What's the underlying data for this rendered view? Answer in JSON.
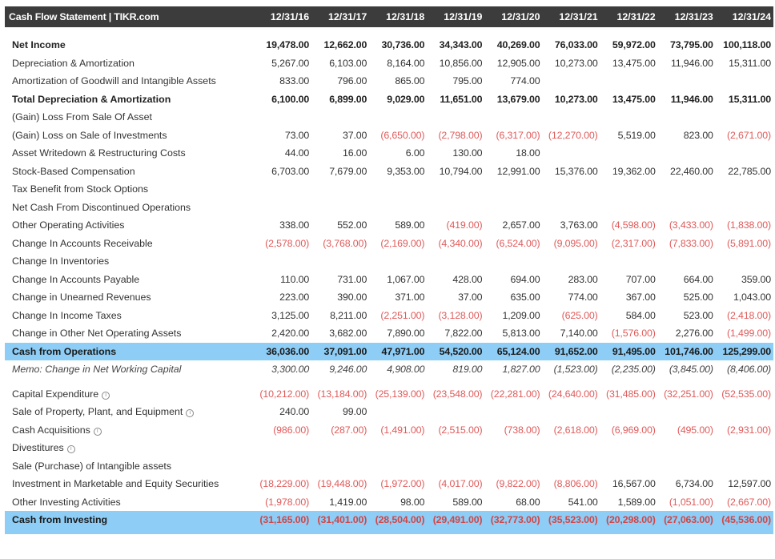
{
  "title": "Cash Flow Statement | TIKR.com",
  "columns": [
    "12/31/16",
    "12/31/17",
    "12/31/18",
    "12/31/19",
    "12/31/20",
    "12/31/21",
    "12/31/22",
    "12/31/23",
    "12/31/24"
  ],
  "sections": [
    {
      "rows": [
        {
          "label": "Net Income",
          "style": "bold",
          "values": [
            "19,478.00",
            "12,662.00",
            "30,736.00",
            "34,343.00",
            "40,269.00",
            "76,033.00",
            "59,972.00",
            "73,795.00",
            "100,118.00"
          ]
        },
        {
          "label": "Depreciation & Amortization",
          "values": [
            "5,267.00",
            "6,103.00",
            "8,164.00",
            "10,856.00",
            "12,905.00",
            "10,273.00",
            "13,475.00",
            "11,946.00",
            "15,311.00"
          ]
        },
        {
          "label": "Amortization of Goodwill and Intangible Assets",
          "values": [
            "833.00",
            "796.00",
            "865.00",
            "795.00",
            "774.00",
            "",
            "",
            "",
            ""
          ]
        },
        {
          "label": "Total Depreciation & Amortization",
          "style": "bold",
          "values": [
            "6,100.00",
            "6,899.00",
            "9,029.00",
            "11,651.00",
            "13,679.00",
            "10,273.00",
            "13,475.00",
            "11,946.00",
            "15,311.00"
          ]
        },
        {
          "label": "(Gain) Loss From Sale Of Asset",
          "values": [
            "",
            "",
            "",
            "",
            "",
            "",
            "",
            "",
            ""
          ]
        },
        {
          "label": "(Gain) Loss on Sale of Investments",
          "values": [
            "73.00",
            "37.00",
            "(6,650.00)",
            "(2,798.00)",
            "(6,317.00)",
            "(12,270.00)",
            "5,519.00",
            "823.00",
            "(2,671.00)"
          ]
        },
        {
          "label": "Asset Writedown & Restructuring Costs",
          "values": [
            "44.00",
            "16.00",
            "6.00",
            "130.00",
            "18.00",
            "",
            "",
            "",
            ""
          ]
        },
        {
          "label": "Stock-Based Compensation",
          "values": [
            "6,703.00",
            "7,679.00",
            "9,353.00",
            "10,794.00",
            "12,991.00",
            "15,376.00",
            "19,362.00",
            "22,460.00",
            "22,785.00"
          ]
        },
        {
          "label": "Tax Benefit from Stock Options",
          "values": [
            "",
            "",
            "",
            "",
            "",
            "",
            "",
            "",
            ""
          ]
        },
        {
          "label": "Net Cash From Discontinued Operations",
          "values": [
            "",
            "",
            "",
            "",
            "",
            "",
            "",
            "",
            ""
          ]
        },
        {
          "label": "Other Operating Activities",
          "values": [
            "338.00",
            "552.00",
            "589.00",
            "(419.00)",
            "2,657.00",
            "3,763.00",
            "(4,598.00)",
            "(3,433.00)",
            "(1,838.00)"
          ]
        },
        {
          "label": "Change In Accounts Receivable",
          "values": [
            "(2,578.00)",
            "(3,768.00)",
            "(2,169.00)",
            "(4,340.00)",
            "(6,524.00)",
            "(9,095.00)",
            "(2,317.00)",
            "(7,833.00)",
            "(5,891.00)"
          ]
        },
        {
          "label": "Change In Inventories",
          "values": [
            "",
            "",
            "",
            "",
            "",
            "",
            "",
            "",
            ""
          ]
        },
        {
          "label": "Change In Accounts Payable",
          "values": [
            "110.00",
            "731.00",
            "1,067.00",
            "428.00",
            "694.00",
            "283.00",
            "707.00",
            "664.00",
            "359.00"
          ]
        },
        {
          "label": "Change in Unearned Revenues",
          "values": [
            "223.00",
            "390.00",
            "371.00",
            "37.00",
            "635.00",
            "774.00",
            "367.00",
            "525.00",
            "1,043.00"
          ]
        },
        {
          "label": "Change In Income Taxes",
          "values": [
            "3,125.00",
            "8,211.00",
            "(2,251.00)",
            "(3,128.00)",
            "1,209.00",
            "(625.00)",
            "584.00",
            "523.00",
            "(2,418.00)"
          ]
        },
        {
          "label": "Change in Other Net Operating Assets",
          "values": [
            "2,420.00",
            "3,682.00",
            "7,890.00",
            "7,822.00",
            "5,813.00",
            "7,140.00",
            "(1,576.00)",
            "2,276.00",
            "(1,499.00)"
          ]
        },
        {
          "label": "Cash from Operations",
          "style": "hl",
          "values": [
            "36,036.00",
            "37,091.00",
            "47,971.00",
            "54,520.00",
            "65,124.00",
            "91,652.00",
            "91,495.00",
            "101,746.00",
            "125,299.00"
          ]
        },
        {
          "label": "Memo: Change in Net Working Capital",
          "style": "memo",
          "values": [
            "3,300.00",
            "9,246.00",
            "4,908.00",
            "819.00",
            "1,827.00",
            "(1,523.00)",
            "(2,235.00)",
            "(3,845.00)",
            "(8,406.00)"
          ]
        }
      ]
    },
    {
      "rows": [
        {
          "label": "Capital Expenditure",
          "info": true,
          "values": [
            "(10,212.00)",
            "(13,184.00)",
            "(25,139.00)",
            "(23,548.00)",
            "(22,281.00)",
            "(24,640.00)",
            "(31,485.00)",
            "(32,251.00)",
            "(52,535.00)"
          ]
        },
        {
          "label": "Sale of Property, Plant, and Equipment",
          "info": true,
          "values": [
            "240.00",
            "99.00",
            "",
            "",
            "",
            "",
            "",
            "",
            ""
          ]
        },
        {
          "label": "Cash Acquisitions",
          "info": true,
          "values": [
            "(986.00)",
            "(287.00)",
            "(1,491.00)",
            "(2,515.00)",
            "(738.00)",
            "(2,618.00)",
            "(6,969.00)",
            "(495.00)",
            "(2,931.00)"
          ]
        },
        {
          "label": "Divestitures",
          "info": true,
          "values": [
            "",
            "",
            "",
            "",
            "",
            "",
            "",
            "",
            ""
          ]
        },
        {
          "label": "Sale (Purchase) of Intangible assets",
          "values": [
            "",
            "",
            "",
            "",
            "",
            "",
            "",
            "",
            ""
          ]
        },
        {
          "label": "Investment in Marketable and Equity Securities",
          "values": [
            "(18,229.00)",
            "(19,448.00)",
            "(1,972.00)",
            "(4,017.00)",
            "(9,822.00)",
            "(8,806.00)",
            "16,567.00",
            "6,734.00",
            "12,597.00"
          ]
        },
        {
          "label": "Other Investing Activities",
          "values": [
            "(1,978.00)",
            "1,419.00",
            "98.00",
            "589.00",
            "68.00",
            "541.00",
            "1,589.00",
            "(1,051.00)",
            "(2,667.00)"
          ]
        },
        {
          "label": "Cash from Investing",
          "style": "hl",
          "values": [
            "(31,165.00)",
            "(31,401.00)",
            "(28,504.00)",
            "(29,491.00)",
            "(32,773.00)",
            "(35,523.00)",
            "(20,298.00)",
            "(27,063.00)",
            "(45,536.00)"
          ]
        }
      ]
    }
  ],
  "colors": {
    "header_bg": "#3c3c3c",
    "highlight_bg": "#8ecdf6",
    "negative": "#e05a5a"
  },
  "icons": {
    "info": "info-circle-icon"
  }
}
